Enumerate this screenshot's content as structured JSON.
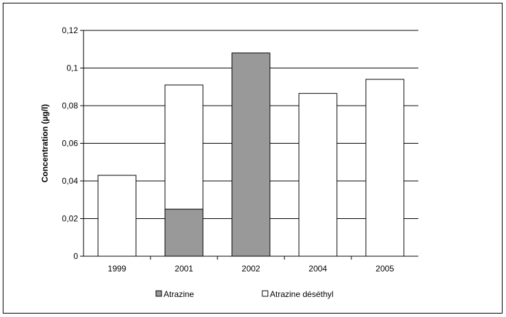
{
  "chart_data": {
    "type": "bar",
    "stacked": true,
    "categories": [
      "1999",
      "2001",
      "2002",
      "2004",
      "2005"
    ],
    "series": [
      {
        "name": "Atrazine",
        "values": [
          0,
          0.025,
          0.108,
          0,
          0
        ],
        "color": "#999999"
      },
      {
        "name": "Atrazine déséthyl",
        "values": [
          0.043,
          0.066,
          0,
          0.0865,
          0.094
        ],
        "color": "#ffffff"
      }
    ],
    "ylabel": "Concentration (µg/l)",
    "xlabel": "",
    "ylim": [
      0,
      0.12
    ],
    "yticks": [
      "0",
      "0,02",
      "0,04",
      "0,06",
      "0,08",
      "0,1",
      "0,12"
    ],
    "grid": true,
    "legend": "bottom"
  }
}
